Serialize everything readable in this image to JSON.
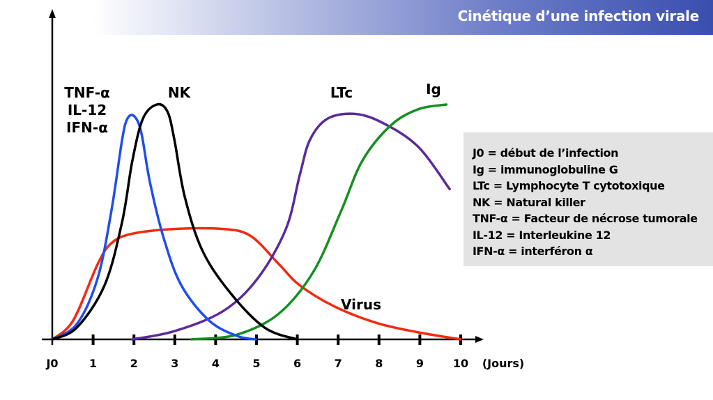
{
  "title": "Cinétique d’une infection virale",
  "legend_box": [
    "J0 = début de l’infection",
    "Ig = immunoglobuline G",
    "LTc = Lymphocyte T cytotoxique",
    "NK = Natural killer",
    "TNF-α = Facteur de nécrose tumorale",
    "IL-12 = Interleukine 12",
    "IFN-α = interféron α"
  ],
  "chart_data": {
    "type": "line",
    "title": "Cinétique d’une infection virale",
    "xlabel": "(Jours)",
    "ylabel": "",
    "xlim": [
      0,
      10
    ],
    "ylim": [
      0,
      100
    ],
    "grid": false,
    "x_tick_labels": [
      "J0",
      "1",
      "2",
      "3",
      "4",
      "5",
      "6",
      "7",
      "8",
      "9",
      "10"
    ],
    "series": [
      {
        "name": "TNF-α / IL-12 / IFN-α",
        "label_lines": [
          "TNF-α",
          "IL-12",
          "IFN-α"
        ],
        "color": "#1f4df0",
        "x": [
          0,
          0.6,
          1.11,
          1.45,
          1.71,
          1.84,
          2.01,
          2.18,
          2.39,
          2.73,
          3.16,
          3.84,
          4.52,
          4.98
        ],
        "y": [
          0,
          6.5,
          26,
          55,
          85,
          94,
          95,
          88,
          67,
          43,
          23,
          8,
          1.5,
          0
        ]
      },
      {
        "name": "NK",
        "label_lines": [
          "NK"
        ],
        "color": "#000000",
        "x": [
          0,
          0.6,
          1.28,
          1.71,
          1.96,
          2.22,
          2.56,
          2.82,
          2.99,
          3.24,
          3.67,
          4.35,
          5.2,
          5.99
        ],
        "y": [
          0,
          5,
          23,
          50,
          76,
          94,
          100,
          97,
          85,
          61,
          38,
          20,
          5,
          0
        ]
      },
      {
        "name": "Virus",
        "label_lines": [
          "Virus"
        ],
        "color": "#f22a10",
        "x": [
          0,
          0.51,
          1.11,
          1.45,
          1.96,
          2.99,
          4.18,
          4.86,
          5.55,
          6.06,
          6.91,
          7.94,
          8.96,
          10
        ],
        "y": [
          0,
          8,
          32,
          41,
          45,
          47,
          47,
          44,
          32,
          23,
          14,
          7,
          3,
          0
        ]
      },
      {
        "name": "LTc",
        "label_lines": [
          "LTc"
        ],
        "color": "#5b2a9c",
        "x": [
          1.96,
          2.99,
          4.18,
          5.03,
          5.72,
          6.06,
          6.31,
          6.74,
          7.42,
          8.11,
          8.96,
          9.73
        ],
        "y": [
          0,
          3.5,
          12,
          26,
          47,
          70,
          85,
          94,
          96,
          92,
          82,
          64
        ]
      },
      {
        "name": "Ig",
        "label_lines": [
          "Ig"
        ],
        "color": "#13901f",
        "x": [
          3.41,
          4.52,
          5.55,
          6.4,
          7.08,
          7.59,
          8.28,
          8.96,
          9.65
        ],
        "y": [
          0,
          2,
          11,
          29,
          55,
          76,
          91,
          98,
          100
        ]
      }
    ]
  }
}
